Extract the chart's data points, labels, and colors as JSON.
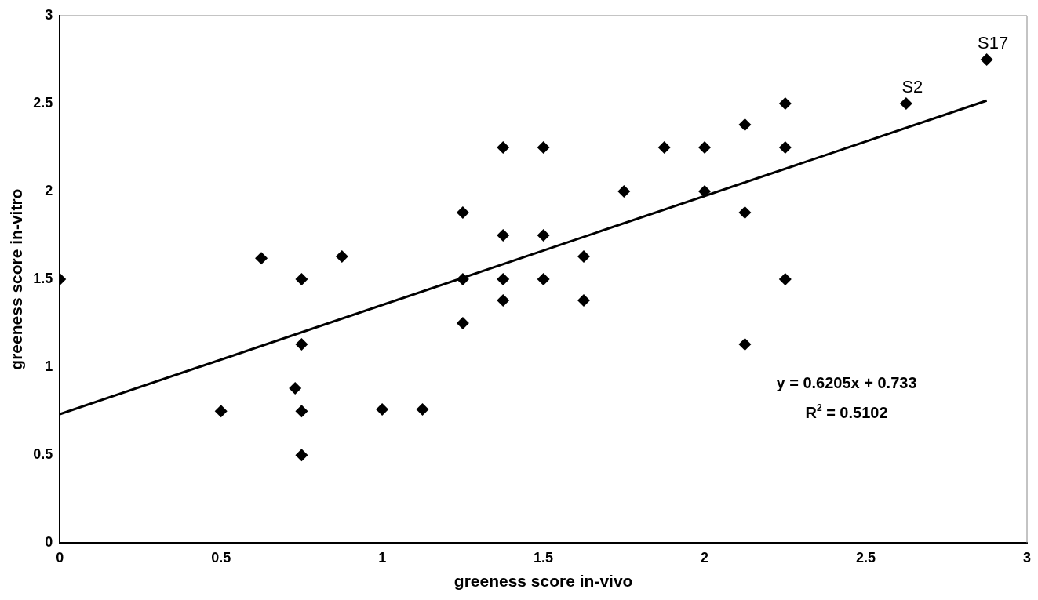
{
  "chart_data": {
    "type": "scatter",
    "xlabel": "greeness score in-vivo",
    "ylabel": "greeness score in-vitro",
    "xlim": [
      0,
      3
    ],
    "xticks": [
      0,
      0.5,
      1,
      1.5,
      2,
      2.5,
      3
    ],
    "ylim": [
      0,
      3
    ],
    "yticks": [
      0,
      0.5,
      1,
      1.5,
      2,
      2.5,
      3
    ],
    "grid": false,
    "legend": false,
    "marker": "diamond",
    "series": [
      {
        "color": "#000000",
        "x": [
          0,
          0.625,
          0.75,
          0.875,
          0.75,
          0.73,
          0.5,
          0.75,
          1,
          1.125,
          0.75,
          1.25,
          1.25,
          1.25,
          1.375,
          1.375,
          1.375,
          1.375,
          1.5,
          1.5,
          1.5,
          1.625,
          1.625,
          1.75,
          1.875,
          2,
          2,
          2.125,
          2.125,
          2.125,
          2.25,
          2.25,
          2.25,
          2.625,
          2.875
        ],
        "values": [
          1.5,
          1.62,
          1.5,
          1.63,
          1.13,
          0.88,
          0.75,
          0.75,
          0.76,
          0.76,
          0.5,
          1.88,
          1.5,
          1.25,
          2.25,
          1.75,
          1.5,
          1.38,
          2.25,
          1.75,
          1.5,
          1.63,
          1.38,
          2,
          2.25,
          2.25,
          2,
          2.38,
          1.88,
          1.13,
          2.5,
          2.25,
          1.5,
          2.5,
          2.75
        ]
      },
      {
        "type": "line",
        "color": "#000000",
        "marker": "none",
        "line_style": "solid",
        "x": [
          0,
          2.875
        ],
        "values": [
          0.733,
          2.517
        ]
      }
    ],
    "annotations": [
      {
        "text": "S2",
        "x": 2.625,
        "y": 2.5
      },
      {
        "text": "S17",
        "x": 2.875,
        "y": 2.75
      },
      "y = 0.6205x + 0.733",
      "R$^{2}$ = 0.5102"
    ]
  }
}
